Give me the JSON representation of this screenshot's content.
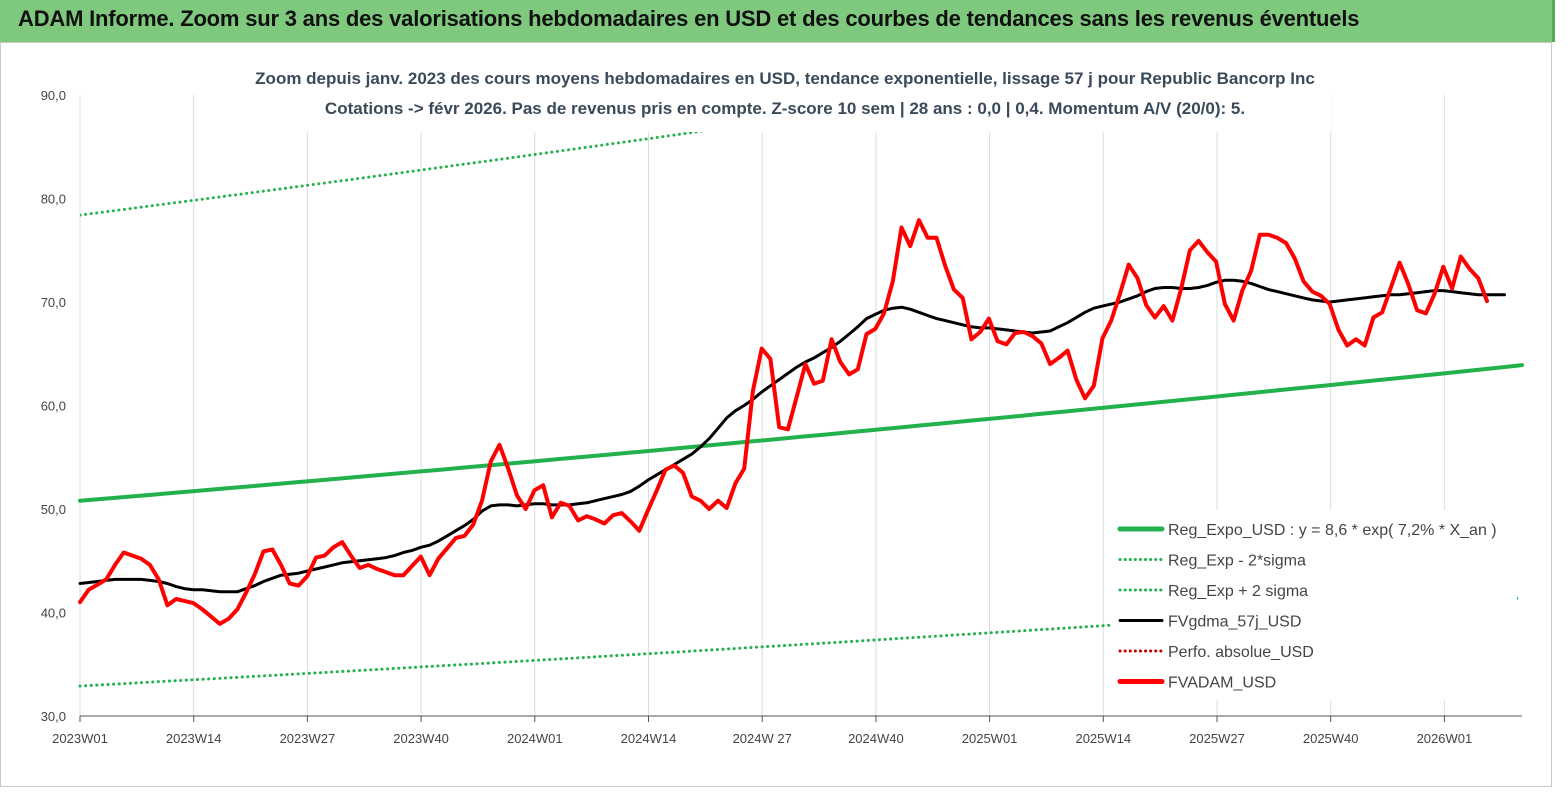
{
  "header": {
    "title": "ADAM Informe. Zoom sur 3 ans des valorisations hebdomadaires en USD et des courbes de tendances sans les revenus éventuels"
  },
  "chart_data": {
    "type": "line",
    "title_lines": [
      "Zoom depuis janv. 2023 des cours moyens hebdomadaires en USD, tendance exponentielle, lissage 57 j pour Republic Bancorp Inc",
      "Cotations -> févr 2026. Pas de revenus pris en compte. Z-score 10 sem | 28 ans : 0,0 | 0,4. Momentum A/V (20/0): 5."
    ],
    "xlabel": "",
    "ylabel": "",
    "ylim": [
      30,
      90
    ],
    "yticks": [
      "30,0",
      "40,0",
      "50,0",
      "60,0",
      "70,0",
      "80,0",
      "90,0"
    ],
    "xticks": [
      "2023W01",
      "2023W14",
      "2023W27",
      "2023W40",
      "2024W01",
      "2024W14",
      "2024W 27",
      "2024W40",
      "2025W01",
      "2025W14",
      "2025W27",
      "2025W40",
      "2026W01"
    ],
    "x_week_range": [
      0,
      165
    ],
    "grid": "vertical",
    "legend_position": "bottom-right",
    "series": [
      {
        "name": "Reg_Expo_USD : y = 8,6 * exp( 7,2% * X_an )",
        "color": "#22b14c",
        "style": "solid-thick",
        "start": 50.8,
        "end": 63.9
      },
      {
        "name": "Reg_Exp - 2*sigma",
        "color": "#22b14c",
        "style": "dotted",
        "start": 32.9,
        "end": 41.4
      },
      {
        "name": "Reg_Exp + 2 sigma",
        "color": "#22b14c",
        "style": "dotted",
        "start": 78.4,
        "end": 98.5
      },
      {
        "name": "FVgdma_57j_USD",
        "color": "#000000",
        "style": "solid",
        "values": [
          42.8,
          42.9,
          43.0,
          43.1,
          43.2,
          43.2,
          43.2,
          43.2,
          43.1,
          43.0,
          42.8,
          42.5,
          42.3,
          42.2,
          42.2,
          42.1,
          42.0,
          42.0,
          42.0,
          42.3,
          42.6,
          43.0,
          43.3,
          43.6,
          43.7,
          43.8,
          44.0,
          44.2,
          44.4,
          44.6,
          44.8,
          44.9,
          45.0,
          45.1,
          45.2,
          45.3,
          45.5,
          45.8,
          46.0,
          46.3,
          46.5,
          46.9,
          47.4,
          47.9,
          48.4,
          49.0,
          49.8,
          50.3,
          50.4,
          50.4,
          50.3,
          50.4,
          50.5,
          50.5,
          50.4,
          50.4,
          50.4,
          50.5,
          50.6,
          50.8,
          51.0,
          51.2,
          51.4,
          51.7,
          52.2,
          52.8,
          53.3,
          53.8,
          54.3,
          54.8,
          55.3,
          56.0,
          56.8,
          57.8,
          58.8,
          59.5,
          60.0,
          60.6,
          61.3,
          61.9,
          62.5,
          63.1,
          63.7,
          64.2,
          64.6,
          65.1,
          65.6,
          66.2,
          66.9,
          67.6,
          68.4,
          68.8,
          69.2,
          69.4,
          69.5,
          69.3,
          69.0,
          68.7,
          68.4,
          68.2,
          68.0,
          67.8,
          67.6,
          67.5,
          67.5,
          67.4,
          67.3,
          67.2,
          67.1,
          67.0,
          67.1,
          67.2,
          67.6,
          68.0,
          68.5,
          69.0,
          69.4,
          69.6,
          69.8,
          70.0,
          70.3,
          70.6,
          71.0,
          71.3,
          71.4,
          71.4,
          71.3,
          71.3,
          71.4,
          71.6,
          71.9,
          72.1,
          72.1,
          72.0,
          71.8,
          71.5,
          71.2,
          71.0,
          70.8,
          70.6,
          70.4,
          70.2,
          70.1,
          70.0,
          70.1,
          70.2,
          70.3,
          70.4,
          70.5,
          70.6,
          70.7,
          70.7,
          70.8,
          70.9,
          71.0,
          71.1,
          71.1,
          71.0,
          70.9,
          70.8,
          70.7,
          70.7,
          70.7,
          70.7
        ]
      },
      {
        "name": "Perfo. absolue_USD",
        "color": "#c00000",
        "style": "dotted",
        "values": []
      },
      {
        "name": "FVADAM_USD",
        "color": "#ff0000",
        "style": "solid-thick",
        "values": [
          41.0,
          42.2,
          42.7,
          43.2,
          44.6,
          45.8,
          45.5,
          45.2,
          44.6,
          43.2,
          40.7,
          41.3,
          41.1,
          40.9,
          40.3,
          39.6,
          38.9,
          39.4,
          40.3,
          41.9,
          43.7,
          45.9,
          46.1,
          44.6,
          42.8,
          42.6,
          43.5,
          45.3,
          45.5,
          46.3,
          46.8,
          45.5,
          44.3,
          44.6,
          44.2,
          43.9,
          43.6,
          43.6,
          44.5,
          45.4,
          43.6,
          45.2,
          46.2,
          47.2,
          47.4,
          48.5,
          50.8,
          54.6,
          56.2,
          53.9,
          51.3,
          50.0,
          51.8,
          52.3,
          49.2,
          50.6,
          50.3,
          48.9,
          49.3,
          49.0,
          48.6,
          49.4,
          49.6,
          48.8,
          47.9,
          49.9,
          51.8,
          53.8,
          54.2,
          53.5,
          51.2,
          50.8,
          50.0,
          50.8,
          50.1,
          52.5,
          53.9,
          61.4,
          65.5,
          64.5,
          57.9,
          57.7,
          60.8,
          64.0,
          62.1,
          62.4,
          66.4,
          64.2,
          63.0,
          63.5,
          66.9,
          67.4,
          68.9,
          72.0,
          77.2,
          75.4,
          77.9,
          76.2,
          76.2,
          73.5,
          71.2,
          70.4,
          66.4,
          67.1,
          68.4,
          66.2,
          65.9,
          67.0,
          67.1,
          66.7,
          66.0,
          64.0,
          64.6,
          65.3,
          62.5,
          60.7,
          61.9,
          66.5,
          68.2,
          70.8,
          73.6,
          72.3,
          69.7,
          68.5,
          69.6,
          68.2,
          71.3,
          75.0,
          75.9,
          74.8,
          73.9,
          69.8,
          68.2,
          71.1,
          73.0,
          76.5,
          76.5,
          76.2,
          75.7,
          74.2,
          72.0,
          71.0,
          70.6,
          69.8,
          67.3,
          65.8,
          66.4,
          65.8,
          68.5,
          69.0,
          71.4,
          73.8,
          71.7,
          69.2,
          68.9,
          70.8,
          73.4,
          71.3,
          74.4,
          73.2,
          72.3,
          70.1
        ]
      }
    ]
  }
}
